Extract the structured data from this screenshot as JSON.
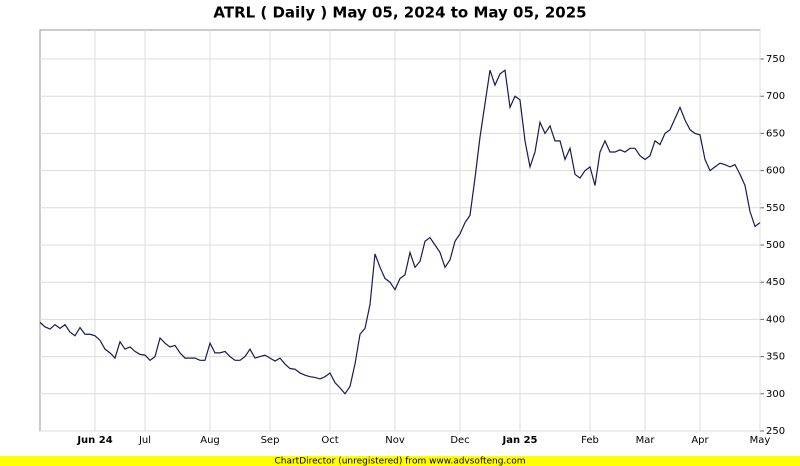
{
  "chart_data": {
    "type": "line",
    "title": "ATRL ( Daily ) May 05, 2024 to May 05, 2025",
    "footer": "ChartDirector (unregistered) from www.advsofteng.com",
    "categories": [
      null,
      null,
      null,
      null,
      null,
      null,
      null,
      null,
      null,
      null,
      null,
      "Jun 24",
      null,
      null,
      null,
      null,
      null,
      null,
      null,
      null,
      null,
      "Jul",
      null,
      null,
      null,
      null,
      null,
      null,
      null,
      null,
      null,
      null,
      null,
      null,
      "Aug",
      null,
      null,
      null,
      null,
      null,
      null,
      null,
      null,
      null,
      null,
      null,
      "Sep",
      null,
      null,
      null,
      null,
      null,
      null,
      null,
      null,
      null,
      null,
      null,
      "Oct",
      null,
      null,
      null,
      null,
      null,
      null,
      null,
      null,
      null,
      null,
      null,
      null,
      "Nov",
      null,
      null,
      null,
      null,
      null,
      null,
      null,
      null,
      null,
      null,
      null,
      null,
      "Dec",
      null,
      null,
      null,
      null,
      null,
      null,
      null,
      null,
      null,
      null,
      null,
      "Jan 25",
      null,
      null,
      null,
      null,
      null,
      null,
      null,
      null,
      null,
      null,
      null,
      null,
      null,
      "Feb",
      null,
      null,
      null,
      null,
      null,
      null,
      null,
      null,
      null,
      null,
      "Mar",
      null,
      null,
      null,
      null,
      null,
      null,
      null,
      null,
      null,
      null,
      "Apr",
      null,
      null,
      null,
      null,
      null,
      null,
      null,
      null,
      null,
      null,
      null,
      "May"
    ],
    "values": [
      396,
      390,
      387,
      393,
      388,
      393,
      383,
      378,
      389,
      380,
      380,
      378,
      372,
      360,
      355,
      348,
      370,
      360,
      363,
      357,
      353,
      352,
      345,
      350,
      375,
      368,
      363,
      365,
      355,
      348,
      348,
      348,
      345,
      345,
      368,
      355,
      355,
      357,
      350,
      345,
      345,
      350,
      360,
      348,
      350,
      352,
      348,
      344,
      348,
      340,
      334,
      333,
      328,
      325,
      323,
      322,
      320,
      323,
      328,
      315,
      308,
      300,
      310,
      340,
      380,
      388,
      420,
      488,
      470,
      455,
      450,
      440,
      455,
      460,
      490,
      470,
      478,
      505,
      510,
      500,
      490,
      470,
      480,
      505,
      515,
      530,
      540,
      590,
      645,
      690,
      735,
      715,
      730,
      735,
      685,
      700,
      695,
      640,
      605,
      625,
      665,
      650,
      660,
      640,
      640,
      615,
      630,
      595,
      590,
      600,
      605,
      580,
      625,
      640,
      625,
      625,
      628,
      625,
      630,
      630,
      620,
      615,
      620,
      640,
      635,
      650,
      655,
      670,
      685,
      668,
      655,
      650,
      648,
      615,
      600,
      605,
      610,
      608,
      605,
      608,
      595,
      580,
      545,
      525,
      530
    ],
    "color": "#1a1a4e",
    "ylim": [
      250,
      789
    ],
    "yticks": [
      250,
      300,
      350,
      400,
      450,
      500,
      550,
      600,
      650,
      700,
      750
    ],
    "grid": true
  }
}
